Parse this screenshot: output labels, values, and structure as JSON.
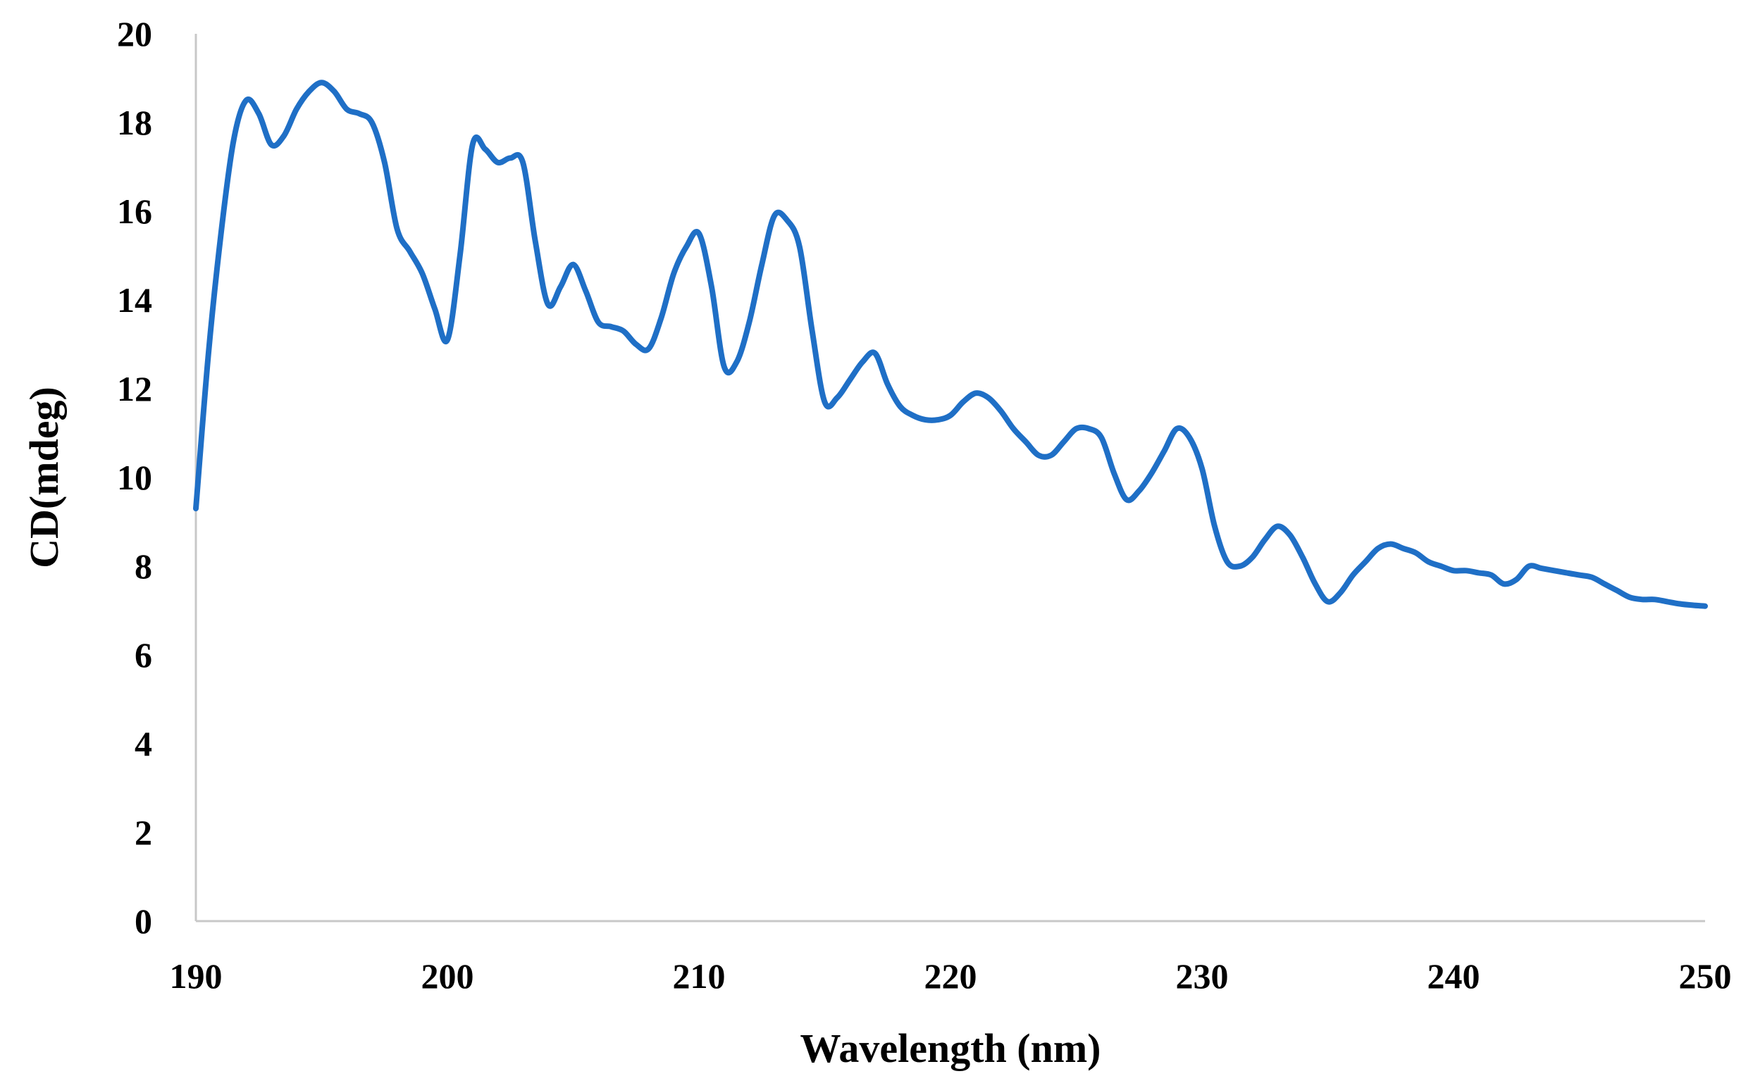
{
  "chart_data": {
    "type": "line",
    "title": "",
    "xlabel": "Wavelength (nm)",
    "ylabel": "CD(mdeg)",
    "xlim": [
      190,
      250
    ],
    "ylim": [
      0,
      20
    ],
    "x_ticks": [
      190,
      200,
      210,
      220,
      230,
      240,
      250
    ],
    "y_ticks": [
      0,
      2,
      4,
      6,
      8,
      10,
      12,
      14,
      16,
      18,
      20
    ],
    "grid": false,
    "legend": "none",
    "series_color": "#1f6fc6",
    "axis_color": "#c8c8c8",
    "series": [
      {
        "x": [
          190,
          190.5,
          191,
          191.5,
          192,
          192.5,
          193,
          193.5,
          194,
          194.5,
          195,
          195.5,
          196,
          196.5,
          197,
          197.5,
          198,
          198.5,
          199,
          199.5,
          200,
          200.5,
          201,
          201.5,
          202,
          202.5,
          203,
          203.5,
          204,
          204.5,
          205,
          205.5,
          206,
          206.5,
          207,
          207.5,
          208,
          208.5,
          209,
          209.5,
          210,
          210.5,
          211,
          211.5,
          212,
          212.5,
          213,
          213.5,
          214,
          214.5,
          215,
          215.5,
          216,
          216.5,
          217,
          217.5,
          218,
          218.5,
          219,
          219.5,
          220,
          220.5,
          221,
          221.5,
          222,
          222.5,
          223,
          223.5,
          224,
          224.5,
          225,
          225.5,
          226,
          226.5,
          227,
          227.5,
          228,
          228.5,
          229,
          229.5,
          230,
          230.5,
          231,
          231.5,
          232,
          232.5,
          233,
          233.5,
          234,
          234.5,
          235,
          235.5,
          236,
          236.5,
          237,
          237.5,
          238,
          238.5,
          239,
          239.5,
          240,
          240.5,
          241,
          241.5,
          242,
          242.5,
          243,
          243.5,
          244,
          244.5,
          245,
          245.5,
          246,
          246.5,
          247,
          247.5,
          248,
          248.5,
          249,
          249.5,
          250
        ],
        "y": [
          9.3,
          12.8,
          15.5,
          17.6,
          18.5,
          18.2,
          17.5,
          17.7,
          18.3,
          18.7,
          18.9,
          18.7,
          18.3,
          18.2,
          18.0,
          17.1,
          15.6,
          15.1,
          14.6,
          13.8,
          13.1,
          15.0,
          17.5,
          17.4,
          17.1,
          17.2,
          17.1,
          15.3,
          13.9,
          14.3,
          14.8,
          14.2,
          13.5,
          13.4,
          13.3,
          13.0,
          12.9,
          13.6,
          14.6,
          15.2,
          15.5,
          14.3,
          12.5,
          12.6,
          13.5,
          14.8,
          15.9,
          15.8,
          15.2,
          13.3,
          11.7,
          11.8,
          12.2,
          12.6,
          12.8,
          12.1,
          11.6,
          11.4,
          11.3,
          11.3,
          11.4,
          11.7,
          11.9,
          11.8,
          11.5,
          11.1,
          10.8,
          10.5,
          10.5,
          10.8,
          11.1,
          11.1,
          10.9,
          10.1,
          9.5,
          9.7,
          10.1,
          10.6,
          11.1,
          10.9,
          10.2,
          8.9,
          8.1,
          8.0,
          8.2,
          8.6,
          8.9,
          8.7,
          8.2,
          7.6,
          7.2,
          7.4,
          7.8,
          8.1,
          8.4,
          8.5,
          8.4,
          8.3,
          8.1,
          8.0,
          7.9,
          7.9,
          7.85,
          7.8,
          7.6,
          7.7,
          8.0,
          7.95,
          7.9,
          7.85,
          7.8,
          7.75,
          7.6,
          7.45,
          7.3,
          7.25,
          7.25,
          7.2,
          7.15,
          7.12,
          7.1
        ]
      }
    ]
  }
}
